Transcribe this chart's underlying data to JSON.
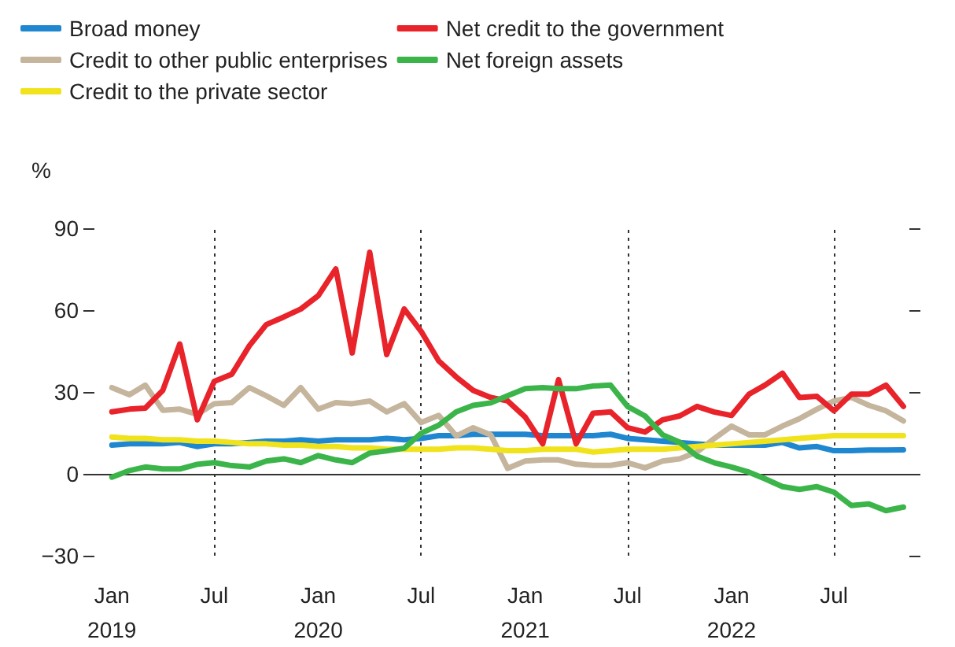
{
  "chart_data": {
    "type": "line",
    "ylabel": "%",
    "x": [
      "2019-01",
      "2019-02",
      "2019-03",
      "2019-04",
      "2019-05",
      "2019-06",
      "2019-07",
      "2019-08",
      "2019-09",
      "2019-10",
      "2019-11",
      "2019-12",
      "2020-01",
      "2020-02",
      "2020-03",
      "2020-04",
      "2020-05",
      "2020-06",
      "2020-07",
      "2020-08",
      "2020-09",
      "2020-10",
      "2020-11",
      "2020-12",
      "2021-01",
      "2021-02",
      "2021-03",
      "2021-04",
      "2021-05",
      "2021-06",
      "2021-07",
      "2021-08",
      "2021-09",
      "2021-10",
      "2021-11",
      "2021-12",
      "2022-01",
      "2022-02",
      "2022-03",
      "2022-04",
      "2022-05",
      "2022-06",
      "2022-07",
      "2022-08",
      "2022-09",
      "2022-10",
      "2022-11"
    ],
    "series": [
      {
        "name": "Broad money",
        "color": "#1f86d0",
        "values": [
          10.5,
          11,
          11,
          11,
          11.5,
          10,
          11,
          11,
          11.5,
          12,
          12,
          12.5,
          12,
          12.5,
          12.5,
          12.5,
          13,
          12.5,
          13,
          14,
          14,
          14.5,
          14.5,
          14.5,
          14.5,
          14,
          14,
          14,
          14,
          14.5,
          13,
          12.5,
          12,
          11.5,
          11,
          10.5,
          10.5,
          10.5,
          10.5,
          11.5,
          9.5,
          10,
          8.5,
          8.5,
          8.7,
          8.7,
          8.8
        ]
      },
      {
        "name": "Credit to other public enterprises",
        "color": "#c4b59c",
        "values": [
          31.6,
          29,
          32.5,
          23.3,
          23.7,
          21.8,
          25.7,
          26.1,
          31.6,
          28.6,
          25.1,
          31.6,
          23.7,
          26.1,
          25.7,
          26.7,
          22.7,
          25.7,
          18.8,
          21.4,
          13.9,
          16.9,
          14.3,
          2,
          4.7,
          5.1,
          5.1,
          3.5,
          3.1,
          3.1,
          4.1,
          2.2,
          4.7,
          5.5,
          8,
          12.9,
          17.5,
          14.3,
          14.3,
          17.5,
          20.2,
          23.7,
          26.7,
          28,
          25.1,
          23.1,
          19.4
        ]
      },
      {
        "name": "Credit to the private sector",
        "color": "#f0e21b",
        "values": [
          13.5,
          13,
          13,
          12.5,
          12.5,
          12,
          12,
          11.5,
          11,
          11,
          10.5,
          10.5,
          10,
          10,
          9.5,
          9.5,
          9,
          9,
          9,
          9,
          9.5,
          9.5,
          9,
          8.5,
          8.5,
          9,
          9,
          9,
          8,
          8.5,
          9,
          9,
          9,
          9.5,
          10,
          10.5,
          11,
          11.5,
          12,
          12.5,
          13,
          13.5,
          14,
          14,
          14,
          14,
          14
        ]
      },
      {
        "name": "Net credit to the government",
        "color": "#e8232a",
        "values": [
          22.7,
          23.7,
          24.1,
          30.6,
          47.6,
          19.8,
          33.9,
          36.5,
          46.9,
          54.7,
          57.5,
          60.4,
          65.3,
          75.1,
          44.3,
          81.2,
          43.7,
          60.4,
          52.2,
          41.4,
          35.5,
          30.6,
          28,
          26.7,
          20.8,
          11,
          34.5,
          11,
          22.2,
          22.7,
          16.9,
          15.3,
          19.8,
          21.2,
          24.7,
          22.7,
          21.4,
          29.2,
          32.5,
          36.9,
          28,
          28.4,
          23.1,
          29.2,
          29.2,
          32.5,
          24.7
        ]
      },
      {
        "name": "Net foreign assets",
        "color": "#3bb54a",
        "values": [
          -1.2,
          1.2,
          2.5,
          1.8,
          1.8,
          3.5,
          4.1,
          3,
          2.5,
          4.7,
          5.5,
          4.1,
          6.7,
          5.1,
          4.1,
          7.6,
          8.4,
          9.4,
          14.9,
          17.8,
          22.7,
          25.1,
          26,
          28.6,
          31.2,
          31.6,
          31.2,
          31.2,
          32.2,
          32.5,
          24.7,
          21.2,
          14.3,
          11.6,
          6.5,
          4.1,
          2.5,
          0.6,
          -1.8,
          -4.7,
          -5.7,
          -4.7,
          -6.7,
          -11.6,
          -11,
          -13.5,
          -12.2
        ]
      }
    ],
    "xlim": [
      "2018-12",
      "2022-12"
    ],
    "xticks": [
      {
        "value": "2019-01",
        "label": "Jan\n2019"
      },
      {
        "value": "2019-07",
        "label": "Jul"
      },
      {
        "value": "2020-01",
        "label": "Jan\n2020"
      },
      {
        "value": "2020-07",
        "label": "Jul"
      },
      {
        "value": "2021-01",
        "label": "Jan\n2021"
      },
      {
        "value": "2021-07",
        "label": "Jul"
      },
      {
        "value": "2022-01",
        "label": "Jan\n2022"
      },
      {
        "value": "2022-07",
        "label": "Jul"
      }
    ],
    "ylim": [
      -30,
      90
    ],
    "yticks": [
      -30,
      0,
      30,
      60,
      90
    ],
    "ref_lines": [
      {
        "axis": "y",
        "value": 0,
        "color": "#333333",
        "line_style": "solid"
      },
      {
        "axis": "x",
        "value": "2019-07",
        "color": "#333333",
        "line_style": "dotted"
      },
      {
        "axis": "x",
        "value": "2020-07",
        "color": "#333333",
        "line_style": "dotted"
      },
      {
        "axis": "x",
        "value": "2021-07",
        "color": "#333333",
        "line_style": "dotted"
      },
      {
        "axis": "x",
        "value": "2022-07",
        "color": "#333333",
        "line_style": "dotted"
      }
    ],
    "grid": false,
    "legend": "top left",
    "marker": "none",
    "line_style": "solid"
  }
}
